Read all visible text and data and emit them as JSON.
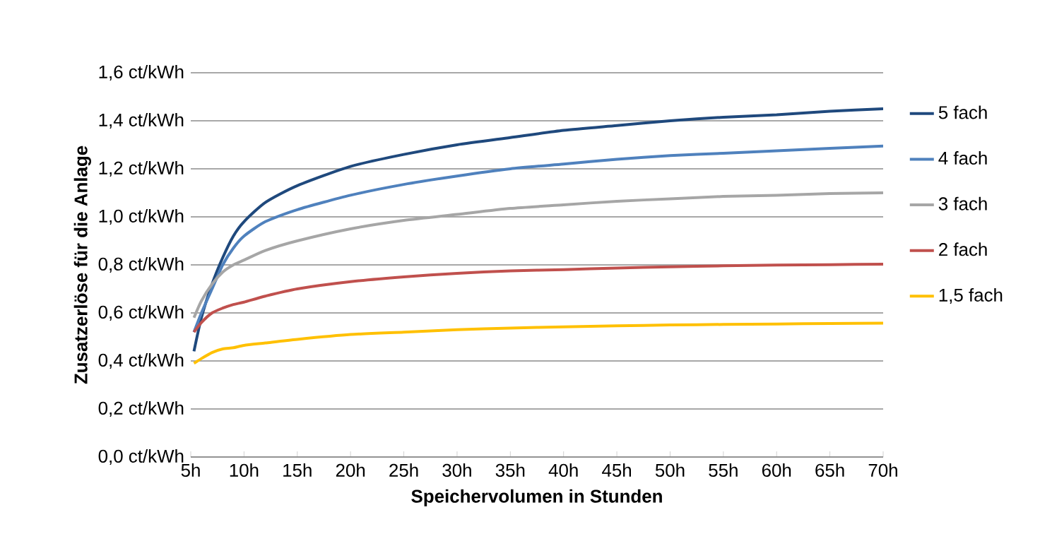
{
  "chart_data": {
    "type": "line",
    "xlabel": "Speichervolumen in Stunden",
    "ylabel": "Zusatzerlöse für die Anlage",
    "x": [
      5.3,
      6,
      7,
      8,
      9,
      10,
      12,
      15,
      20,
      25,
      30,
      35,
      40,
      45,
      50,
      55,
      60,
      65,
      70
    ],
    "series": [
      {
        "name": "5 fach",
        "color": "#1f497d",
        "values": [
          0.44,
          0.58,
          0.72,
          0.83,
          0.92,
          0.98,
          1.06,
          1.13,
          1.21,
          1.26,
          1.3,
          1.33,
          1.36,
          1.38,
          1.4,
          1.415,
          1.425,
          1.44,
          1.45
        ]
      },
      {
        "name": "4 fach",
        "color": "#4f81bd",
        "values": [
          0.52,
          0.6,
          0.7,
          0.8,
          0.87,
          0.92,
          0.98,
          1.03,
          1.09,
          1.135,
          1.17,
          1.2,
          1.22,
          1.24,
          1.255,
          1.265,
          1.275,
          1.285,
          1.295
        ]
      },
      {
        "name": "3 fach",
        "color": "#a6a6a6",
        "values": [
          0.58,
          0.65,
          0.72,
          0.77,
          0.8,
          0.82,
          0.86,
          0.9,
          0.95,
          0.985,
          1.01,
          1.035,
          1.05,
          1.065,
          1.075,
          1.085,
          1.09,
          1.097,
          1.1
        ]
      },
      {
        "name": "2 fach",
        "color": "#c0504d",
        "values": [
          0.52,
          0.56,
          0.6,
          0.62,
          0.635,
          0.645,
          0.67,
          0.7,
          0.73,
          0.75,
          0.765,
          0.775,
          0.78,
          0.787,
          0.792,
          0.796,
          0.799,
          0.801,
          0.803
        ]
      },
      {
        "name": "1,5 fach",
        "color": "#ffc000",
        "values": [
          0.39,
          0.41,
          0.435,
          0.45,
          0.455,
          0.465,
          0.475,
          0.49,
          0.51,
          0.52,
          0.53,
          0.537,
          0.542,
          0.546,
          0.55,
          0.552,
          0.554,
          0.556,
          0.557
        ]
      }
    ],
    "xlim": [
      5,
      70
    ],
    "xticks": [
      {
        "value": 5,
        "label": "5h"
      },
      {
        "value": 10,
        "label": "10h"
      },
      {
        "value": 15,
        "label": "15h"
      },
      {
        "value": 20,
        "label": "20h"
      },
      {
        "value": 25,
        "label": "25h"
      },
      {
        "value": 30,
        "label": "30h"
      },
      {
        "value": 35,
        "label": "35h"
      },
      {
        "value": 40,
        "label": "40h"
      },
      {
        "value": 45,
        "label": "45h"
      },
      {
        "value": 50,
        "label": "50h"
      },
      {
        "value": 55,
        "label": "55h"
      },
      {
        "value": 60,
        "label": "60h"
      },
      {
        "value": 65,
        "label": "65h"
      },
      {
        "value": 70,
        "label": "70h"
      }
    ],
    "ylim": [
      0,
      1.6
    ],
    "yticks": [
      {
        "value": 0,
        "label": "0,0 ct/kWh"
      },
      {
        "value": 0.2,
        "label": "0,2 ct/kWh"
      },
      {
        "value": 0.4,
        "label": "0,4 ct/kWh"
      },
      {
        "value": 0.6,
        "label": "0,6 ct/kWh"
      },
      {
        "value": 0.8,
        "label": "0,8 ct/kWh"
      },
      {
        "value": 1.0,
        "label": "1,0 ct/kWh"
      },
      {
        "value": 1.2,
        "label": "1,2 ct/kWh"
      },
      {
        "value": 1.4,
        "label": "1,4 ct/kWh"
      },
      {
        "value": 1.6,
        "label": "1,6 ct/kWh"
      }
    ],
    "grid": "y",
    "legend": "right",
    "marker": "none",
    "line_style": "solid"
  }
}
